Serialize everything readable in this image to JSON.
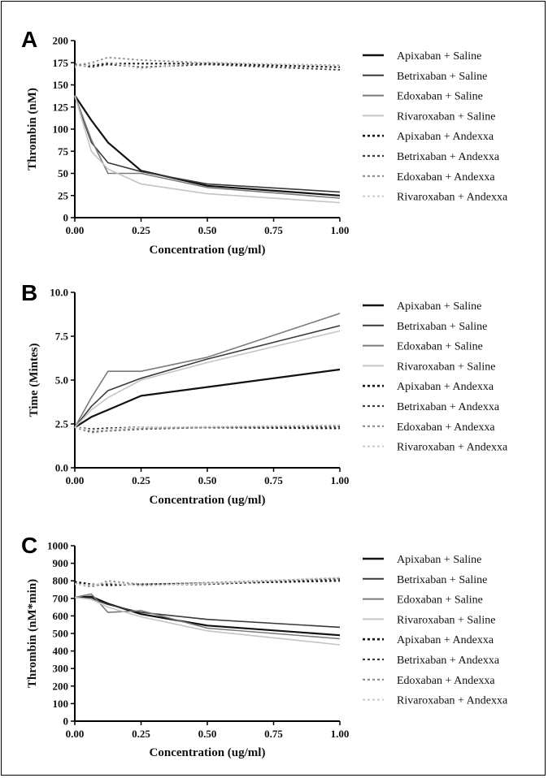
{
  "figure": {
    "legend": [
      "Apixaban + Saline",
      "Betrixaban + Saline",
      "Edoxaban + Saline",
      "Rivaroxaban + Saline",
      "Apixaban + Andexxa",
      "Betrixaban + Andexxa",
      "Edoxaban + Andexxa",
      "Rivaroxaban  + Andexxa"
    ],
    "series_style": [
      {
        "color": "#111111",
        "dash": "solid",
        "width": 2.2
      },
      {
        "color": "#3a3a3a",
        "dash": "solid",
        "width": 1.6
      },
      {
        "color": "#7a7a7a",
        "dash": "solid",
        "width": 1.6
      },
      {
        "color": "#c4c4c4",
        "dash": "solid",
        "width": 1.6
      },
      {
        "color": "#111111",
        "dash": "dotted",
        "width": 2.2
      },
      {
        "color": "#3a3a3a",
        "dash": "dotted",
        "width": 1.8
      },
      {
        "color": "#8a8a8a",
        "dash": "dotted",
        "width": 1.8
      },
      {
        "color": "#d0d0d0",
        "dash": "dotted",
        "width": 1.8
      }
    ]
  },
  "chart_data": [
    {
      "panel": "A",
      "type": "line",
      "title": "",
      "xlabel": "Concentration (ug/ml)",
      "ylabel": "Thrombin (nM)",
      "xlim": [
        0,
        1
      ],
      "ylim": [
        0,
        200
      ],
      "xticks": [
        "0.00",
        "0.25",
        "0.50",
        "0.75",
        "1.00"
      ],
      "xtick_values": [
        0,
        0.25,
        0.5,
        0.75,
        1.0
      ],
      "yticks": [
        "0",
        "25",
        "50",
        "75",
        "100",
        "125",
        "150",
        "175",
        "200"
      ],
      "ytick_values": [
        0,
        25,
        50,
        75,
        100,
        125,
        150,
        175,
        200
      ],
      "legend_position": "right",
      "series": [
        {
          "name": "Apixaban + Saline",
          "x": [
            0,
            0.0625,
            0.125,
            0.25,
            0.5,
            1.0
          ],
          "y": [
            138,
            110,
            85,
            53,
            36,
            25
          ]
        },
        {
          "name": "Betrixaban + Saline",
          "x": [
            0,
            0.0625,
            0.125,
            0.25,
            0.5,
            1.0
          ],
          "y": [
            137,
            85,
            62,
            52,
            38,
            29
          ]
        },
        {
          "name": "Edoxaban + Saline",
          "x": [
            0,
            0.0625,
            0.125,
            0.25,
            0.5,
            1.0
          ],
          "y": [
            138,
            88,
            50,
            50,
            34,
            22
          ]
        },
        {
          "name": "Rivaroxaban + Saline",
          "x": [
            0,
            0.0625,
            0.125,
            0.25,
            0.5,
            1.0
          ],
          "y": [
            138,
            75,
            55,
            38,
            27,
            17
          ]
        },
        {
          "name": "Apixaban + Andexxa",
          "x": [
            0,
            0.0625,
            0.125,
            0.25,
            0.5,
            1.0
          ],
          "y": [
            173,
            172,
            174,
            174,
            174,
            170
          ]
        },
        {
          "name": "Betrixaban + Andexxa",
          "x": [
            0,
            0.0625,
            0.125,
            0.25,
            0.5,
            1.0
          ],
          "y": [
            173,
            170,
            173,
            170,
            173,
            167
          ]
        },
        {
          "name": "Edoxaban + Andexxa",
          "x": [
            0,
            0.0625,
            0.125,
            0.25,
            0.5,
            1.0
          ],
          "y": [
            172,
            175,
            181,
            178,
            175,
            172
          ]
        },
        {
          "name": "Rivaroxaban  + Andexxa",
          "x": [
            0,
            0.0625,
            0.125,
            0.25,
            0.5,
            1.0
          ],
          "y": [
            170,
            173,
            176,
            168,
            176,
            171
          ]
        }
      ]
    },
    {
      "panel": "B",
      "type": "line",
      "title": "",
      "xlabel": "Concentration (ug/ml)",
      "ylabel": "Time (Mintes)",
      "xlim": [
        0,
        1
      ],
      "ylim": [
        0,
        10
      ],
      "xticks": [
        "0.00",
        "0.25",
        "0.50",
        "0.75",
        "1.00"
      ],
      "xtick_values": [
        0,
        0.25,
        0.5,
        0.75,
        1.0
      ],
      "yticks": [
        "0.0",
        "2.5",
        "5.0",
        "7.5",
        "10.0"
      ],
      "ytick_values": [
        0,
        2.5,
        5,
        7.5,
        10
      ],
      "legend_position": "right",
      "series": [
        {
          "name": "Apixaban + Saline",
          "x": [
            0,
            0.0625,
            0.125,
            0.25,
            0.5,
            1.0
          ],
          "y": [
            2.3,
            2.9,
            3.3,
            4.1,
            4.6,
            5.6
          ]
        },
        {
          "name": "Betrixaban + Saline",
          "x": [
            0,
            0.0625,
            0.125,
            0.25,
            0.5,
            1.0
          ],
          "y": [
            2.3,
            3.5,
            4.4,
            5.1,
            6.2,
            8.1
          ]
        },
        {
          "name": "Edoxaban + Saline",
          "x": [
            0,
            0.0625,
            0.125,
            0.25,
            0.5,
            1.0
          ],
          "y": [
            2.3,
            4.0,
            5.5,
            5.5,
            6.3,
            8.8
          ]
        },
        {
          "name": "Rivaroxaban + Saline",
          "x": [
            0,
            0.0625,
            0.125,
            0.25,
            0.5,
            1.0
          ],
          "y": [
            2.3,
            3.3,
            4.0,
            5.0,
            6.0,
            7.8
          ]
        },
        {
          "name": "Apixaban + Andexxa",
          "x": [
            0,
            0.0625,
            0.125,
            0.25,
            0.5,
            1.0
          ],
          "y": [
            2.3,
            2.2,
            2.25,
            2.3,
            2.3,
            2.25
          ]
        },
        {
          "name": "Betrixaban + Andexxa",
          "x": [
            0,
            0.0625,
            0.125,
            0.25,
            0.5,
            1.0
          ],
          "y": [
            2.3,
            2.05,
            2.1,
            2.2,
            2.3,
            2.35
          ]
        },
        {
          "name": "Edoxaban + Andexxa",
          "x": [
            0,
            0.0625,
            0.125,
            0.25,
            0.5,
            1.0
          ],
          "y": [
            2.3,
            2.0,
            2.1,
            2.25,
            2.3,
            2.4
          ]
        },
        {
          "name": "Rivaroxaban  + Andexxa",
          "x": [
            0,
            0.0625,
            0.125,
            0.25,
            0.5,
            1.0
          ],
          "y": [
            2.3,
            2.15,
            2.2,
            2.3,
            2.35,
            2.45
          ]
        }
      ]
    },
    {
      "panel": "C",
      "type": "line",
      "title": "",
      "xlabel": "Concentration (ug/ml)",
      "ylabel": "Thrombin (nM*min)",
      "xlim": [
        0,
        1
      ],
      "ylim": [
        0,
        1000
      ],
      "xticks": [
        "0.00",
        "0.25",
        "0.50",
        "0.75",
        "1.00"
      ],
      "xtick_values": [
        0,
        0.25,
        0.5,
        0.75,
        1.0
      ],
      "yticks": [
        "0",
        "100",
        "200",
        "300",
        "400",
        "500",
        "600",
        "700",
        "800",
        "900",
        "1000"
      ],
      "ytick_values": [
        0,
        100,
        200,
        300,
        400,
        500,
        600,
        700,
        800,
        900,
        1000
      ],
      "legend_position": "right",
      "series": [
        {
          "name": "Apixaban + Saline",
          "x": [
            0,
            0.0625,
            0.125,
            0.25,
            0.5,
            1.0
          ],
          "y": [
            705,
            710,
            670,
            610,
            545,
            490
          ]
        },
        {
          "name": "Betrixaban + Saline",
          "x": [
            0,
            0.0625,
            0.125,
            0.25,
            0.5,
            1.0
          ],
          "y": [
            705,
            700,
            665,
            620,
            580,
            535
          ]
        },
        {
          "name": "Edoxaban + Saline",
          "x": [
            0,
            0.0625,
            0.125,
            0.25,
            0.5,
            1.0
          ],
          "y": [
            705,
            725,
            620,
            630,
            530,
            470
          ]
        },
        {
          "name": "Rivaroxaban + Saline",
          "x": [
            0,
            0.0625,
            0.125,
            0.25,
            0.5,
            1.0
          ],
          "y": [
            705,
            695,
            650,
            595,
            515,
            435
          ]
        },
        {
          "name": "Apixaban + Andexxa",
          "x": [
            0,
            0.0625,
            0.125,
            0.25,
            0.5,
            1.0
          ],
          "y": [
            795,
            780,
            775,
            780,
            785,
            800
          ]
        },
        {
          "name": "Betrixaban + Andexxa",
          "x": [
            0,
            0.0625,
            0.125,
            0.25,
            0.5,
            1.0
          ],
          "y": [
            790,
            770,
            785,
            775,
            780,
            810
          ]
        },
        {
          "name": "Edoxaban + Andexxa",
          "x": [
            0,
            0.0625,
            0.125,
            0.25,
            0.5,
            1.0
          ],
          "y": [
            785,
            765,
            800,
            780,
            790,
            815
          ]
        },
        {
          "name": "Rivaroxaban  + Andexxa",
          "x": [
            0,
            0.0625,
            0.125,
            0.25,
            0.5,
            1.0
          ],
          "y": [
            780,
            775,
            790,
            770,
            785,
            820
          ]
        }
      ]
    }
  ]
}
